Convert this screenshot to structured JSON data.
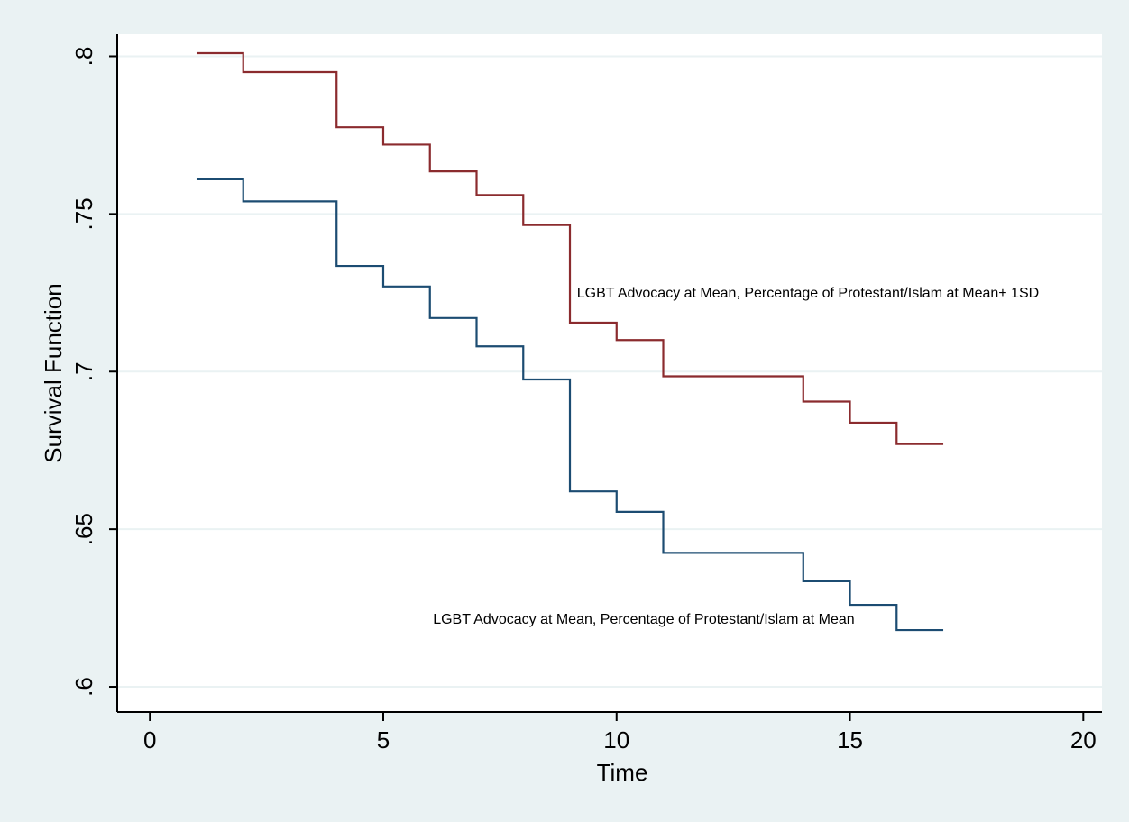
{
  "chart_data": {
    "type": "line",
    "step": true,
    "xlabel": "Time",
    "ylabel": "Survival Function",
    "xlim": [
      -0.7,
      20.4
    ],
    "ylim": [
      0.592,
      0.807
    ],
    "xticks": [
      0,
      5,
      10,
      15,
      20
    ],
    "xtick_labels": [
      "0",
      "5",
      "10",
      "15",
      "20"
    ],
    "yticks": [
      0.6,
      0.65,
      0.7,
      0.75,
      0.8
    ],
    "ytick_labels": [
      ".6",
      ".65",
      ".7",
      ".75",
      ".8"
    ],
    "grid": "horizontal",
    "legend": "none",
    "series": [
      {
        "color": "#8b2b2e",
        "x": [
          1,
          2,
          4,
          5,
          6,
          7,
          8,
          9,
          10,
          11,
          14,
          15,
          16,
          17
        ],
        "y": [
          0.801,
          0.795,
          0.7775,
          0.772,
          0.7635,
          0.756,
          0.7465,
          0.7155,
          0.71,
          0.6985,
          0.6905,
          0.6838,
          0.677,
          0.677
        ]
      },
      {
        "color": "#1c4c72",
        "x": [
          1,
          2,
          4,
          5,
          6,
          7,
          8,
          9,
          10,
          11,
          14,
          15,
          16,
          17
        ],
        "y": [
          0.761,
          0.754,
          0.7335,
          0.727,
          0.717,
          0.708,
          0.6975,
          0.662,
          0.6555,
          0.6425,
          0.6335,
          0.626,
          0.618,
          0.618
        ]
      }
    ],
    "annotations": [
      {
        "text": "LGBT Advocacy at Mean, Percentage of Protestant/Islam at Mean+ 1SD",
        "x": 9.15,
        "y": 0.7235,
        "anchor": "start"
      },
      {
        "text": "LGBT Advocacy at Mean, Percentage of Protestant/Islam at Mean",
        "x": 15.1,
        "y": 0.62,
        "anchor": "end"
      }
    ],
    "colors": {
      "outer_background": "#eaf2f3",
      "plot_background": "#ffffff",
      "grid": "#eaf2f3",
      "axis": "#000000"
    }
  }
}
